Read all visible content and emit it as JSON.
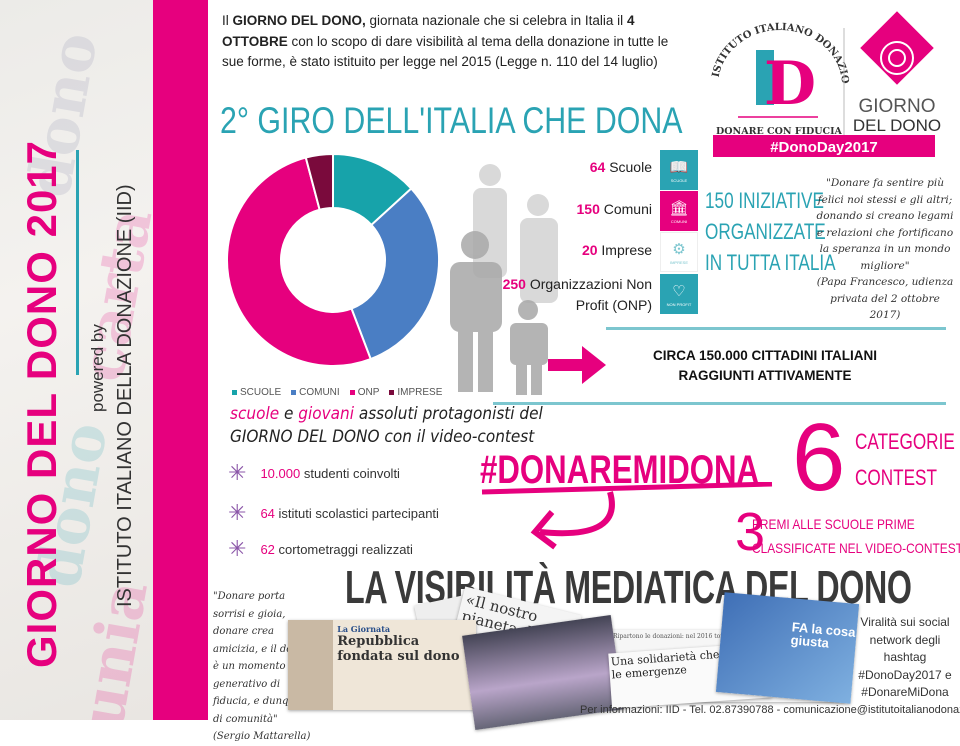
{
  "sidebar": {
    "title": "GIORNO DEL DONO 2017",
    "powered_by": "powered by",
    "institute": "ISTITUTO ITALIANO DELLA DONAZIONE (IID)"
  },
  "intro": {
    "p1_a": "Il ",
    "p1_b": "GIORNO DEL DONO,",
    "p1_c": " giornata nazionale che si celebra in Italia il ",
    "p1_d": "4 OTTOBRE",
    "p1_e": " con lo scopo di dare visibilità al tema della donazione in tutte le sue forme, è stato istituito per legge nel 2015 (Legge n. 110 del 14 luglio)"
  },
  "logo": {
    "iid_arc": "ISTITUTO ITALIANO DONAZIONE",
    "iid_letters": "ID",
    "iid_tagline": "DONARE CON FIDUCIA",
    "gdd_line1": "GIORNO",
    "gdd_line2": "DEL DONO",
    "hashtag": "#DonoDay2017"
  },
  "giro_title": "2° GIRO DELL'ITALIA CHE DONA",
  "chart_data": {
    "type": "pie",
    "style": "donut",
    "categories": [
      "SCUOLE",
      "COMUNI",
      "ONP",
      "IMPRESE"
    ],
    "values": [
      64,
      150,
      250,
      20
    ],
    "colors": [
      "#17a3aa",
      "#4a7ec4",
      "#e6007e",
      "#7a0a3c"
    ],
    "legend": "bottom"
  },
  "stats": [
    {
      "num": "64",
      "label": "Scuole",
      "icon": "book-icon",
      "icon_caption": "SCUOLE",
      "color": "#2aa3b3"
    },
    {
      "num": "150",
      "label": "Comuni",
      "icon": "town-hall-icon",
      "icon_caption": "COMUNI",
      "color": "#e6007e"
    },
    {
      "num": "20",
      "label": "Imprese",
      "icon": "gears-icon",
      "icon_caption": "IMPRESE",
      "color": "#ffffff"
    },
    {
      "num": "250",
      "label": "Organizzazioni Non Profit (ONP)",
      "icon": "heart-icon",
      "icon_caption": "NON PROFIT",
      "color": "#2aa3b3"
    }
  ],
  "iniziative": [
    "150 INIZIATIVE",
    "ORGANIZZATE",
    "IN TUTTA ITALIA"
  ],
  "papa_quote": "\"Donare fa sentire più felici noi stessi e gli altri; donando si creano legami e relazioni che fortificano la speranza in un mondo migliore\"",
  "papa_source": "(Papa Francesco, udienza privata del 2 ottobre 2017)",
  "circa": [
    "CIRCA 150.000 CITTADINI ITALIANI",
    "RAGGIUNTI ATTIVAMENTE"
  ],
  "contest": {
    "line1_a": "scuole",
    "line1_b": " e ",
    "line1_c": "giovani",
    "line1_d": " assoluti protagonisti del",
    "line2_a": "GIORNO DEL DONO",
    "line2_b": " con il video-contest",
    "bullets": [
      {
        "num": "10.000",
        "text": "studenti coinvolti"
      },
      {
        "num": "64",
        "text": "istituti scolastici partecipanti"
      },
      {
        "num": "62",
        "text": "cortometraggi realizzati"
      }
    ],
    "hashtag": "#DONAREMIDONA",
    "categories_num": "6",
    "categories_text": [
      "CATEGORIE",
      "CONTEST"
    ],
    "prizes_num": "3",
    "prizes_text": [
      "PREMI ALLE SCUOLE PRIME",
      "CLASSIFICATE NEL VIDEO-CONTEST"
    ]
  },
  "media": {
    "title": "LA VISIBILITÀ MEDIATICA DEL DONO",
    "mattarella_quote": "\"Donare porta sorrisi e gioia, donare crea amicizia, e il dono è un momento generativo di fiducia, e dunque di comunità\"",
    "mattarella_source": "(Sergio Mattarella)",
    "clip1_kicker": "La Giornata",
    "clip1_headline": "Repubblica fondata sul dono",
    "clip2_headline": "«Il nostro pianeta dono ricevuto da co",
    "clip3_headline": "Ripartono le donazioni: nel 2016 tornate ai livelli pre-crisi",
    "clip4_headline": "Una solidarietà che va oltre le emergenze",
    "clip5_text": "FA la cosa giusta",
    "viral": "Viralità sui social network degli hashtag #DonoDay2017 e #DonareMiDona"
  },
  "footer": "Per informazioni: IID - Tel. 02.87390788 - comunicazione@istitutoitalianodonazione.it"
}
